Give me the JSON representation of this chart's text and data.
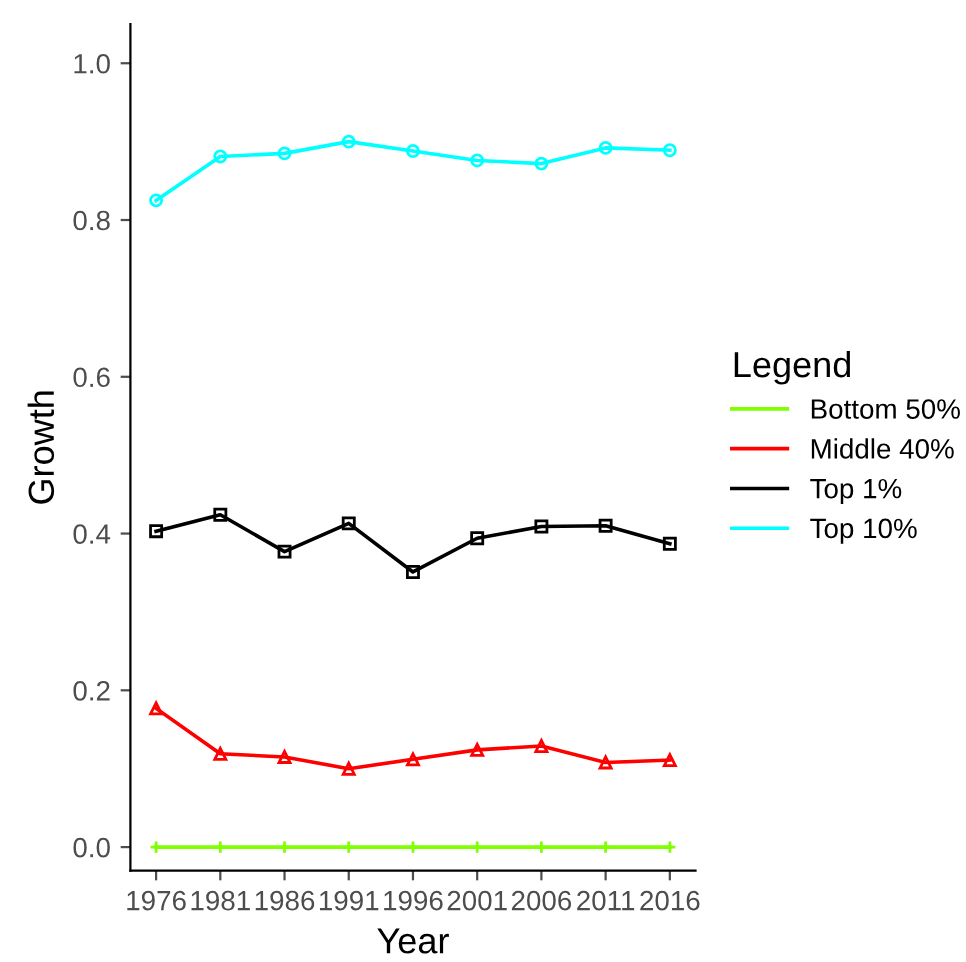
{
  "chart_data": {
    "type": "line",
    "xlabel": "Year",
    "ylabel": "Growth",
    "legend_title": "Legend",
    "legend": "right",
    "grid": false,
    "x": [
      1976,
      1981,
      1986,
      1991,
      1996,
      2001,
      2006,
      2011,
      2016
    ],
    "xlim": [
      1974,
      2018
    ],
    "xticks": [
      1976,
      1981,
      1986,
      1991,
      1996,
      2001,
      2006,
      2011,
      2016
    ],
    "ylim": [
      -0.03,
      1.05
    ],
    "yticks": [
      {
        "value": 0,
        "label": "0.0"
      },
      {
        "value": 0.2,
        "label": "0.2"
      },
      {
        "value": 0.4,
        "label": "0.4"
      },
      {
        "value": 0.6,
        "label": "0.6"
      },
      {
        "value": 0.8,
        "label": "0.8"
      },
      {
        "value": 1,
        "label": "1.0"
      }
    ],
    "series": [
      {
        "name": "Bottom 50%",
        "color": "#7fff00",
        "marker": "cross",
        "values": [
          0,
          0,
          0,
          0,
          0,
          0,
          0,
          0,
          0
        ]
      },
      {
        "name": "Middle 40%",
        "color": "#ff0000",
        "marker": "triangle",
        "values": [
          0.177,
          0.119,
          0.115,
          0.1,
          0.112,
          0.124,
          0.129,
          0.108,
          0.111
        ]
      },
      {
        "name": "Top 1%",
        "color": "#000000",
        "marker": "square",
        "values": [
          0.403,
          0.424,
          0.377,
          0.413,
          0.351,
          0.394,
          0.409,
          0.41,
          0.387
        ]
      },
      {
        "name": "Top 10%",
        "color": "#00ffff",
        "marker": "circle",
        "values": [
          0.825,
          0.881,
          0.885,
          0.9,
          0.888,
          0.876,
          0.872,
          0.892,
          0.889
        ]
      }
    ]
  }
}
